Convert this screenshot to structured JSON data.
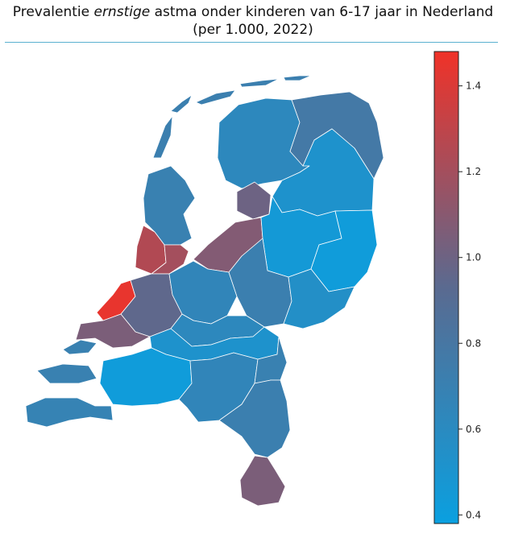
{
  "title": {
    "prefix": "Prevalentie ",
    "emphasis": "ernstige",
    "suffix": " astma onder kinderen van 6-17 jaar in Nederland",
    "line2": "(per 1.000, 2022)"
  },
  "colorbar": {
    "min": 0.38,
    "max": 1.48,
    "ticks": [
      0.4,
      0.6,
      0.8,
      1.0,
      1.2,
      1.4
    ],
    "tick_labels": [
      "0.4",
      "0.6",
      "0.8",
      "1.0",
      "1.2",
      "1.4"
    ],
    "colors": {
      "low": "#0aa0e0",
      "mid": "#5a6a90",
      "high": "#f03228"
    }
  },
  "map": {
    "regions": [
      {
        "id": "wadden-1",
        "value": 0.72
      },
      {
        "id": "wadden-2",
        "value": 0.72
      },
      {
        "id": "wadden-3",
        "value": 0.72
      },
      {
        "id": "wadden-4",
        "value": 0.72
      },
      {
        "id": "wadden-5",
        "value": 0.72
      },
      {
        "id": "groningen-north",
        "value": 0.62
      },
      {
        "id": "groningen-east",
        "value": 0.78
      },
      {
        "id": "drenthe",
        "value": 0.52
      },
      {
        "id": "flevoland-north",
        "value": 1.0
      },
      {
        "id": "flevoland-south",
        "value": 1.08
      },
      {
        "id": "overijssel-west",
        "value": 0.45
      },
      {
        "id": "overijssel-east",
        "value": 0.42
      },
      {
        "id": "noord-holland-north",
        "value": 0.7
      },
      {
        "id": "noord-holland-west",
        "value": 1.25
      },
      {
        "id": "noord-holland-south",
        "value": 1.2
      },
      {
        "id": "zuid-holland-west",
        "value": 1.45
      },
      {
        "id": "zuid-holland-east",
        "value": 0.95
      },
      {
        "id": "zuid-holland-south",
        "value": 1.05
      },
      {
        "id": "utrecht",
        "value": 0.65
      },
      {
        "id": "gelderland-north",
        "value": 0.72
      },
      {
        "id": "gelderland-east",
        "value": 0.55
      },
      {
        "id": "gelderland-centre",
        "value": 0.62
      },
      {
        "id": "gelderland-south",
        "value": 0.52
      },
      {
        "id": "zeeland-north",
        "value": 0.7
      },
      {
        "id": "zeeland-south",
        "value": 0.68
      },
      {
        "id": "noord-brabant-west",
        "value": 0.42
      },
      {
        "id": "noord-brabant-centre",
        "value": 0.65
      },
      {
        "id": "noord-brabant-east",
        "value": 0.7
      },
      {
        "id": "limburg-north",
        "value": 0.72
      },
      {
        "id": "limburg-south",
        "value": 1.05
      }
    ]
  }
}
